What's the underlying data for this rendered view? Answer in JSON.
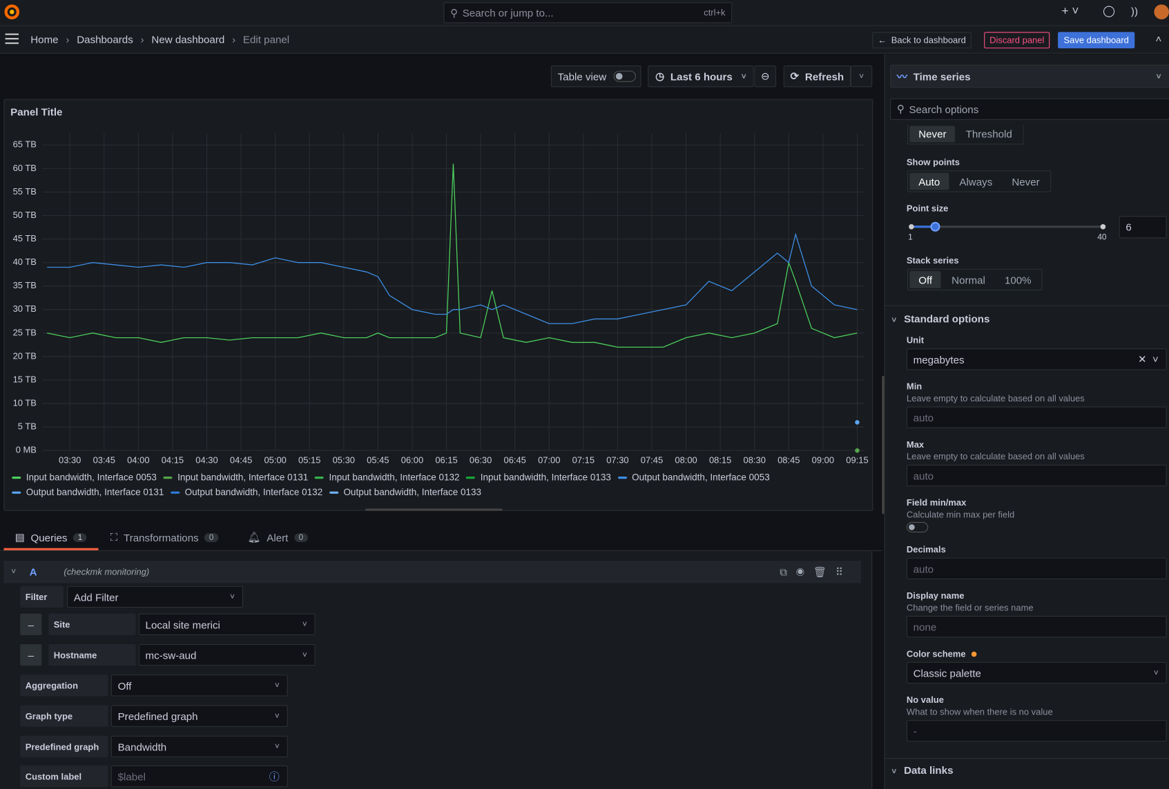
{
  "topbar": {
    "search": "Search or jump to...",
    "shortcut": "ctrl+k"
  },
  "breadcrumbs": [
    "Home",
    "Dashboards",
    "New dashboard",
    "Edit panel"
  ],
  "actions": {
    "back": "Back to dashboard",
    "discard": "Discard panel",
    "save": "Save dashboard"
  },
  "toolbar": {
    "table_view": "Table view",
    "time_range": "Last 6 hours",
    "refresh": "Refresh"
  },
  "chart_data": {
    "type": "line",
    "title": "Panel Title",
    "x": [
      "03:20",
      "03:30",
      "03:40",
      "03:50",
      "04:00",
      "04:10",
      "04:20",
      "04:30",
      "04:40",
      "04:50",
      "05:00",
      "05:10",
      "05:20",
      "05:30",
      "05:40",
      "05:45",
      "05:50",
      "06:00",
      "06:10",
      "06:15",
      "06:18",
      "06:21",
      "06:30",
      "06:35",
      "06:40",
      "06:50",
      "07:00",
      "07:10",
      "07:20",
      "07:30",
      "07:40",
      "07:50",
      "08:00",
      "08:10",
      "08:20",
      "08:30",
      "08:40",
      "08:45",
      "08:48",
      "08:55",
      "09:05",
      "09:15"
    ],
    "xlim": [
      "03:18",
      "09:18"
    ],
    "xticks": [
      "03:30",
      "03:45",
      "04:00",
      "04:15",
      "04:30",
      "04:45",
      "05:00",
      "05:15",
      "05:30",
      "05:45",
      "06:00",
      "06:15",
      "06:30",
      "06:45",
      "07:00",
      "07:15",
      "07:30",
      "07:45",
      "08:00",
      "08:15",
      "08:30",
      "08:45",
      "09:00",
      "09:15"
    ],
    "ylim": [
      0,
      67.5
    ],
    "yticks": [
      {
        "value": 0,
        "label": "0 MB"
      },
      {
        "value": 5,
        "label": "5 TB"
      },
      {
        "value": 10,
        "label": "10 TB"
      },
      {
        "value": 15,
        "label": "15 TB"
      },
      {
        "value": 20,
        "label": "20 TB"
      },
      {
        "value": 25,
        "label": "25 TB"
      },
      {
        "value": 30,
        "label": "30 TB"
      },
      {
        "value": 35,
        "label": "35 TB"
      },
      {
        "value": 40,
        "label": "40 TB"
      },
      {
        "value": 45,
        "label": "45 TB"
      },
      {
        "value": 50,
        "label": "50 TB"
      },
      {
        "value": 55,
        "label": "55 TB"
      },
      {
        "value": 60,
        "label": "60 TB"
      },
      {
        "value": 65,
        "label": "65 TB"
      }
    ],
    "grid": true,
    "series": [
      {
        "name": "Input bandwidth, Interface 0053",
        "color": "#4ccf5e",
        "values": [
          25,
          24,
          25,
          24,
          24,
          23,
          24,
          24,
          23.5,
          24,
          24,
          24,
          25,
          24,
          24,
          25,
          24,
          24,
          24,
          25,
          61,
          25,
          24,
          34,
          24,
          23,
          24,
          23,
          23,
          22,
          22,
          22,
          24,
          25,
          24,
          25,
          27,
          40,
          36,
          26,
          24,
          25
        ]
      },
      {
        "name": "Input bandwidth, Interface 0131",
        "color": "#56a64b",
        "values": [
          null,
          null,
          null,
          null,
          null,
          null,
          null,
          null,
          null,
          null,
          null,
          null,
          null,
          null,
          null,
          null,
          null,
          null,
          null,
          null,
          null,
          null,
          null,
          null,
          null,
          null,
          null,
          null,
          null,
          null,
          null,
          null,
          null,
          null,
          null,
          null,
          null,
          null,
          null,
          null,
          null,
          0
        ]
      },
      {
        "name": "Input bandwidth, Interface 0132",
        "color": "#37b24d",
        "values": [
          null,
          null,
          null,
          null,
          null,
          null,
          null,
          null,
          null,
          null,
          null,
          null,
          null,
          null,
          null,
          null,
          null,
          null,
          null,
          null,
          null,
          null,
          null,
          null,
          null,
          null,
          null,
          null,
          null,
          null,
          null,
          null,
          null,
          null,
          null,
          null,
          null,
          null,
          null,
          null,
          null,
          null
        ]
      },
      {
        "name": "Input bandwidth, Interface 0133",
        "color": "#19a33a",
        "values": [
          null,
          null,
          null,
          null,
          null,
          null,
          null,
          null,
          null,
          null,
          null,
          null,
          null,
          null,
          null,
          null,
          null,
          null,
          null,
          null,
          null,
          null,
          null,
          null,
          null,
          null,
          null,
          null,
          null,
          null,
          null,
          null,
          null,
          null,
          null,
          null,
          null,
          null,
          null,
          null,
          null,
          null
        ]
      },
      {
        "name": "Output bandwidth, Interface 0053",
        "color": "#3d8ee6",
        "values": [
          39,
          39,
          40,
          39.5,
          39,
          39.5,
          39,
          40,
          40,
          39.5,
          41,
          40,
          40,
          39,
          38,
          37,
          33,
          30,
          29,
          29,
          30,
          30,
          31,
          30,
          31,
          29,
          27,
          27,
          28,
          28,
          29,
          30,
          31,
          36,
          34,
          38,
          42,
          40,
          46,
          35,
          31,
          30
        ]
      },
      {
        "name": "Output bandwidth, Interface 0131",
        "color": "#5ba4f0",
        "values": [
          null,
          null,
          null,
          null,
          null,
          null,
          null,
          null,
          null,
          null,
          null,
          null,
          null,
          null,
          null,
          null,
          null,
          null,
          null,
          null,
          null,
          null,
          null,
          null,
          null,
          null,
          null,
          null,
          null,
          null,
          null,
          null,
          null,
          null,
          null,
          null,
          null,
          null,
          null,
          null,
          null,
          6
        ]
      },
      {
        "name": "Output bandwidth, Interface 0132",
        "color": "#2f7bd8",
        "values": [
          null,
          null,
          null,
          null,
          null,
          null,
          null,
          null,
          null,
          null,
          null,
          null,
          null,
          null,
          null,
          null,
          null,
          null,
          null,
          null,
          null,
          null,
          null,
          null,
          null,
          null,
          null,
          null,
          null,
          null,
          null,
          null,
          null,
          null,
          null,
          null,
          null,
          null,
          null,
          null,
          null,
          null
        ]
      },
      {
        "name": "Output bandwidth, Interface 0133",
        "color": "#6fb0f5",
        "values": [
          null,
          null,
          null,
          null,
          null,
          null,
          null,
          null,
          null,
          null,
          null,
          null,
          null,
          null,
          null,
          null,
          null,
          null,
          null,
          null,
          null,
          null,
          null,
          null,
          null,
          null,
          null,
          null,
          null,
          null,
          null,
          null,
          null,
          null,
          null,
          null,
          null,
          null,
          null,
          null,
          null,
          null
        ]
      }
    ]
  },
  "tabs": [
    {
      "label": "Queries",
      "count": 1
    },
    {
      "label": "Transformations",
      "count": 0
    },
    {
      "label": "Alert",
      "count": 0
    }
  ],
  "query": {
    "ref": "A",
    "datasource": "(checkmk monitoring)",
    "fields": [
      {
        "label": "Filter",
        "value": "Add Filter"
      },
      {
        "label": "Site",
        "value": "Local site merici"
      },
      {
        "label": "Hostname",
        "value": "mc-sw-aud"
      },
      {
        "label": "Aggregation",
        "value": "Off"
      },
      {
        "label": "Graph type",
        "value": "Predefined graph"
      },
      {
        "label": "Predefined graph",
        "value": "Bandwidth"
      },
      {
        "label": "Custom label",
        "value": "$label"
      }
    ]
  },
  "options": {
    "viz": "Time series",
    "search": "Search options",
    "partial": [
      "Never",
      "Threshold"
    ],
    "show_points": {
      "label": "Show points",
      "options": [
        "Auto",
        "Always",
        "Never"
      ]
    },
    "point_size": {
      "label": "Point size",
      "min": 1,
      "max": 40,
      "value": 6
    },
    "stack": {
      "label": "Stack series",
      "options": [
        "Off",
        "Normal",
        "100%"
      ]
    },
    "standard": "Standard options",
    "unit": {
      "label": "Unit",
      "value": "megabytes"
    },
    "min": {
      "label": "Min",
      "desc": "Leave empty to calculate based on all values",
      "placeholder": "auto"
    },
    "max": {
      "label": "Max",
      "desc": "Leave empty to calculate based on all values",
      "placeholder": "auto"
    },
    "field_minmax": {
      "label": "Field min/max",
      "desc": "Calculate min max per field"
    },
    "decimals": {
      "label": "Decimals",
      "placeholder": "auto"
    },
    "display_name": {
      "label": "Display name",
      "desc": "Change the field or series name",
      "placeholder": "none"
    },
    "color_scheme": {
      "label": "Color scheme",
      "value": "Classic palette"
    },
    "no_value": {
      "label": "No value",
      "desc": "What to show when there is no value",
      "placeholder": "-"
    },
    "data_links": "Data links"
  }
}
